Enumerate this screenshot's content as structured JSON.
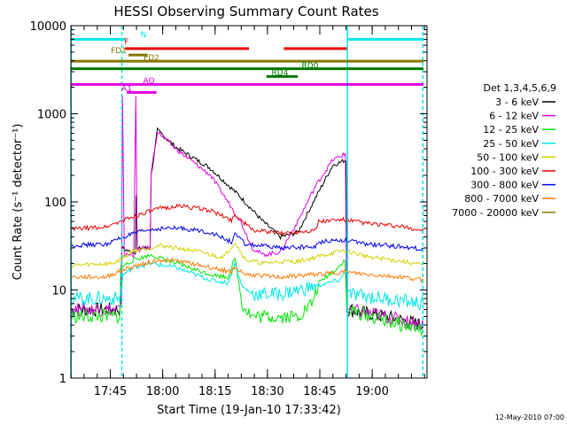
{
  "chart_data": {
    "type": "line",
    "title": "HESSI Observing Summary Count Rates",
    "xlabel": "Start Time (19-Jan-10 17:33:42)",
    "ylabel": "Count Rate (s⁻¹ detector⁻¹)",
    "timestamp": "12-May-2010 07:00",
    "x_range_minutes": [
      0,
      102
    ],
    "x_unit": "minutes since 17:33:42",
    "x_ticks": [
      {
        "label": "17:45",
        "value": 11.3
      },
      {
        "label": "18:00",
        "value": 26.3
      },
      {
        "label": "18:15",
        "value": 41.3
      },
      {
        "label": "18:30",
        "value": 56.3
      },
      {
        "label": "18:45",
        "value": 71.3
      },
      {
        "label": "19:00",
        "value": 86.3
      }
    ],
    "y_scale": "log",
    "ylim": [
      1,
      10000
    ],
    "y_ticks": [
      {
        "label": "1",
        "value": 1
      },
      {
        "label": "10",
        "value": 10
      },
      {
        "label": "100",
        "value": 100
      },
      {
        "label": "1000",
        "value": 1000
      },
      {
        "label": "10000",
        "value": 10000
      }
    ],
    "legend": {
      "title": "Det 1,3,4,5,6,9",
      "entries": [
        {
          "label": "3 - 6 keV",
          "color": "#000000"
        },
        {
          "label": "6 - 12 keV",
          "color": "#e100e1"
        },
        {
          "label": "12 - 25 keV",
          "color": "#00e600"
        },
        {
          "label": "25 - 50 keV",
          "color": "#00e6e6"
        },
        {
          "label": "50 - 100 keV",
          "color": "#d2d200"
        },
        {
          "label": "100 - 300 keV",
          "color": "#e60000"
        },
        {
          "label": "300 - 800 keV",
          "color": "#0000e6"
        },
        {
          "label": "800 - 7000 keV",
          "color": "#ff7800"
        },
        {
          "label": "7000 - 20000 keV",
          "color": "#827800"
        }
      ]
    },
    "series": [
      {
        "name": "3 - 6 keV",
        "color": "#000000",
        "points": [
          [
            0,
            6
          ],
          [
            10,
            6
          ],
          [
            13,
            6
          ],
          [
            14.2,
            6
          ],
          [
            14.6,
            30
          ],
          [
            17,
            27
          ],
          [
            18.5,
            27
          ],
          [
            18.7,
            120
          ],
          [
            19,
            29
          ],
          [
            21,
            30
          ],
          [
            22.7,
            30
          ],
          [
            23,
            200
          ],
          [
            24.8,
            650
          ],
          [
            30,
            420
          ],
          [
            40,
            240
          ],
          [
            48,
            120
          ],
          [
            55,
            60
          ],
          [
            60,
            40
          ],
          [
            65,
            45
          ],
          [
            70,
            110
          ],
          [
            75,
            260
          ],
          [
            78.8,
            300
          ],
          [
            79,
            6
          ],
          [
            90,
            5
          ],
          [
            101,
            4
          ]
        ]
      },
      {
        "name": "6 - 12 keV",
        "color": "#e100e1",
        "points": [
          [
            0,
            6
          ],
          [
            12,
            6
          ],
          [
            14.5,
            6
          ],
          [
            14.8,
            1650
          ],
          [
            15.3,
            25
          ],
          [
            18,
            25
          ],
          [
            18.6,
            1500
          ],
          [
            19,
            28
          ],
          [
            21,
            30
          ],
          [
            22.7,
            30
          ],
          [
            23,
            220
          ],
          [
            24.8,
            630
          ],
          [
            30,
            400
          ],
          [
            40,
            200
          ],
          [
            45,
            100
          ],
          [
            48.6,
            60
          ],
          [
            52,
            30
          ],
          [
            55,
            25
          ],
          [
            60,
            27
          ],
          [
            65,
            60
          ],
          [
            70,
            150
          ],
          [
            75,
            300
          ],
          [
            78.6,
            350
          ],
          [
            79,
            6
          ],
          [
            90,
            5
          ],
          [
            101,
            4
          ]
        ]
      },
      {
        "name": "12 - 25 keV",
        "color": "#00e600",
        "points": [
          [
            0,
            5
          ],
          [
            14,
            5
          ],
          [
            14.3,
            18
          ],
          [
            18,
            22
          ],
          [
            23,
            25
          ],
          [
            27,
            22
          ],
          [
            30,
            20
          ],
          [
            40,
            15
          ],
          [
            45,
            14
          ],
          [
            47,
            23
          ],
          [
            49,
            7
          ],
          [
            52,
            5
          ],
          [
            58,
            5
          ],
          [
            65,
            5
          ],
          [
            69,
            7
          ],
          [
            71,
            12
          ],
          [
            74,
            15
          ],
          [
            76.5,
            18
          ],
          [
            78.5,
            22
          ],
          [
            79,
            6
          ],
          [
            90,
            4.5
          ],
          [
            101,
            3.5
          ]
        ]
      },
      {
        "name": "25 - 50 keV",
        "color": "#00e6e6",
        "points": [
          [
            0,
            8
          ],
          [
            14,
            8
          ],
          [
            15,
            15
          ],
          [
            18,
            18
          ],
          [
            23,
            20
          ],
          [
            30,
            18
          ],
          [
            40,
            13
          ],
          [
            45,
            12
          ],
          [
            47,
            20
          ],
          [
            49,
            11
          ],
          [
            52,
            9
          ],
          [
            60,
            9
          ],
          [
            70,
            11
          ],
          [
            77,
            13
          ],
          [
            79,
            17
          ],
          [
            79.3,
            9
          ],
          [
            90,
            8
          ],
          [
            101,
            7
          ]
        ]
      },
      {
        "name": "50 - 100 keV",
        "color": "#d2d200",
        "points": [
          [
            0,
            19
          ],
          [
            12,
            20
          ],
          [
            14,
            22
          ],
          [
            18,
            28
          ],
          [
            26,
            32
          ],
          [
            35,
            28
          ],
          [
            42,
            24
          ],
          [
            44,
            24
          ],
          [
            47,
            35
          ],
          [
            50,
            22
          ],
          [
            55,
            20
          ],
          [
            60,
            21
          ],
          [
            65,
            21
          ],
          [
            71,
            24
          ],
          [
            78,
            28
          ],
          [
            85,
            24
          ],
          [
            95,
            21
          ],
          [
            101,
            19
          ]
        ]
      },
      {
        "name": "100 - 300 keV",
        "color": "#e60000",
        "points": [
          [
            0,
            49
          ],
          [
            10,
            52
          ],
          [
            15,
            62
          ],
          [
            21,
            75
          ],
          [
            26,
            85
          ],
          [
            32,
            90
          ],
          [
            40,
            80
          ],
          [
            46,
            62
          ],
          [
            47,
            72
          ],
          [
            52,
            48
          ],
          [
            60,
            44
          ],
          [
            70,
            48
          ],
          [
            71,
            60
          ],
          [
            78,
            63
          ],
          [
            85,
            57
          ],
          [
            95,
            52
          ],
          [
            101,
            47
          ]
        ]
      },
      {
        "name": "300 - 800 keV",
        "color": "#0000e6",
        "points": [
          [
            0,
            32
          ],
          [
            10,
            33
          ],
          [
            15,
            40
          ],
          [
            21,
            47
          ],
          [
            26,
            50
          ],
          [
            32,
            50
          ],
          [
            40,
            45
          ],
          [
            46,
            35
          ],
          [
            47,
            43
          ],
          [
            50,
            33
          ],
          [
            60,
            30
          ],
          [
            70,
            31
          ],
          [
            72,
            36
          ],
          [
            78,
            37
          ],
          [
            85,
            33
          ],
          [
            95,
            31
          ],
          [
            101,
            29
          ]
        ]
      },
      {
        "name": "800 - 7000 keV",
        "color": "#ff7800",
        "points": [
          [
            0,
            14
          ],
          [
            10,
            14
          ],
          [
            15,
            17
          ],
          [
            21,
            20
          ],
          [
            26,
            22
          ],
          [
            32,
            21
          ],
          [
            40,
            18
          ],
          [
            46,
            16
          ],
          [
            47,
            18
          ],
          [
            50,
            15
          ],
          [
            60,
            14
          ],
          [
            70,
            15
          ],
          [
            78,
            16
          ],
          [
            85,
            15
          ],
          [
            95,
            14
          ],
          [
            101,
            13
          ]
        ]
      }
    ],
    "annotations": {
      "bars": [
        {
          "label": "N",
          "color": "#00e6e6",
          "y": 7000,
          "segments": [
            [
              0,
              15.5
            ],
            [
              79.2,
              101
            ]
          ]
        },
        {
          "label": "F",
          "color": "#e60000",
          "y": 5500,
          "segments": [
            [
              15.5,
              51
            ],
            [
              61,
              79
            ]
          ]
        },
        {
          "label": "FD1",
          "color": "#827800",
          "y": 4650,
          "segments": [
            [
              16.5,
              22
            ]
          ]
        },
        {
          "label": "FD2",
          "color": "#827800",
          "y": 3950,
          "segments": [
            [
              0,
              101
            ]
          ]
        },
        {
          "label": "RD0",
          "color": "#007800",
          "y": 3250,
          "segments": [
            [
              0,
              101
            ]
          ]
        },
        {
          "label": "RD4",
          "color": "#007800",
          "y": 2650,
          "segments": [
            [
              56,
              65
            ]
          ]
        },
        {
          "label": "AQ",
          "color": "#e100e1",
          "y": 2150,
          "segments": [
            [
              0,
              101
            ]
          ]
        },
        {
          "label": "A1",
          "color": "#e100e1",
          "y": 1750,
          "segments": [
            [
              16,
              24.5
            ]
          ]
        }
      ],
      "vlines": [
        {
          "x": 0.1,
          "style": "solid",
          "color": "#00e6e6"
        },
        {
          "x": 14.6,
          "style": "dashed",
          "color": "#00e6e6"
        },
        {
          "x": 79.2,
          "style": "solid",
          "color": "#00e6e6"
        },
        {
          "x": 100.8,
          "style": "dashed",
          "color": "#00e6e6"
        }
      ]
    }
  }
}
